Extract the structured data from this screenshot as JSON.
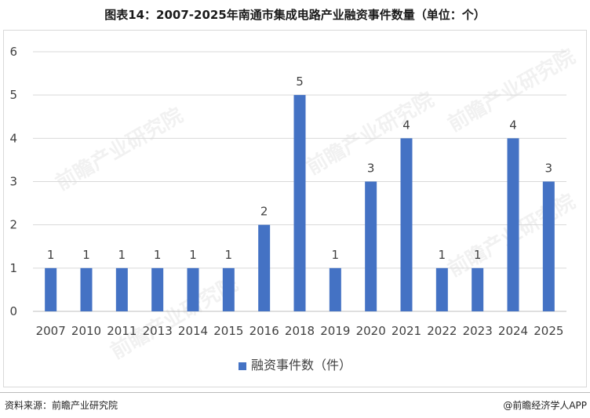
{
  "title": "图表14：2007-2025年南通市集成电路产业融资事件数量（单位：个）",
  "source": "资料来源：前瞻产业研究院",
  "credit": "@前瞻经济学人APP",
  "watermark": "前瞻产业研究院",
  "colors": {
    "bar": "#4472C4",
    "grid": "#d9d9d9",
    "axis": "#bfbfbf"
  },
  "chart_data": {
    "type": "bar",
    "categories": [
      "2007",
      "2010",
      "2011",
      "2013",
      "2014",
      "2015",
      "2016",
      "2018",
      "2019",
      "2020",
      "2021",
      "2022",
      "2023",
      "2024",
      "2025"
    ],
    "series": [
      {
        "name": "融资事件数（件）",
        "values": [
          1,
          1,
          1,
          1,
          1,
          1,
          2,
          5,
          1,
          3,
          4,
          1,
          1,
          4,
          3
        ]
      }
    ],
    "ylim": [
      0,
      6
    ],
    "yticks": [
      0,
      1,
      2,
      3,
      4,
      5,
      6
    ],
    "grid": true,
    "legend": "bottom",
    "xlabel": "",
    "ylabel": ""
  }
}
